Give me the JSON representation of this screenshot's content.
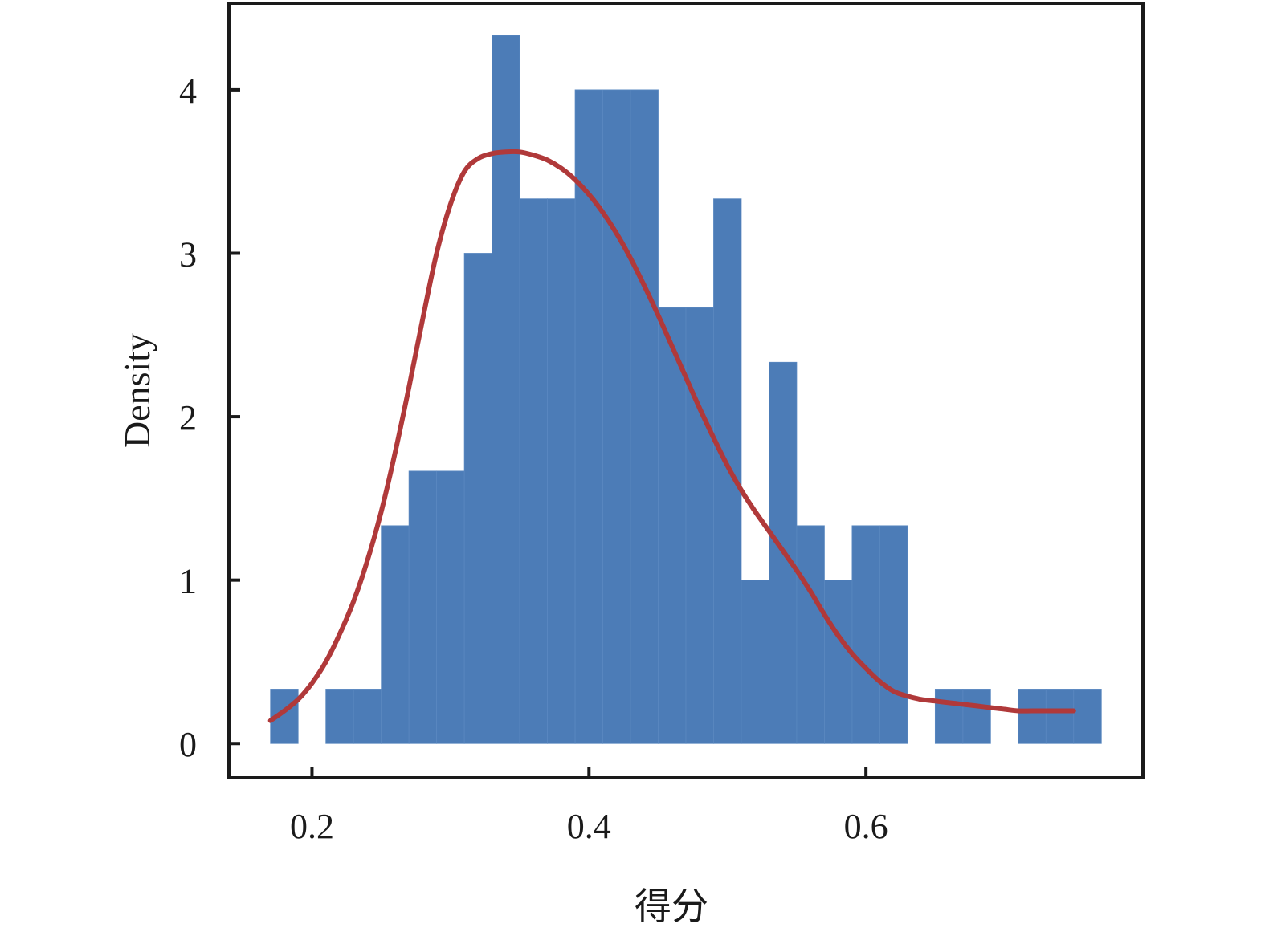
{
  "chart_data": {
    "type": "bar",
    "title": "",
    "xlabel": "得分",
    "ylabel": "Density",
    "xlim": [
      0.14,
      0.8
    ],
    "ylim": [
      -0.21,
      4.53
    ],
    "x_ticks": [
      {
        "value": 0.2,
        "label": "0.2"
      },
      {
        "value": 0.4,
        "label": "0.4"
      },
      {
        "value": 0.6,
        "label": "0.6"
      }
    ],
    "y_ticks": [
      {
        "value": 0,
        "label": "0"
      },
      {
        "value": 1,
        "label": "1"
      },
      {
        "value": 2,
        "label": "2"
      },
      {
        "value": 3,
        "label": "3"
      },
      {
        "value": 4,
        "label": "4"
      }
    ],
    "grid": false,
    "histogram": {
      "bin_start": 0.17,
      "bin_width": 0.02,
      "color": "#4c7cb7",
      "densities": [
        0.333,
        0,
        0.333,
        0.333,
        1.333,
        1.667,
        1.667,
        3.0,
        4.333,
        3.333,
        3.333,
        4.0,
        4.0,
        4.0,
        2.667,
        2.667,
        3.333,
        1.0,
        2.333,
        1.333,
        1.0,
        1.333,
        1.333,
        0,
        0.333,
        0.333,
        0,
        0.333,
        0.333,
        0.333
      ]
    },
    "kde": {
      "color": "#b0393a",
      "x": [
        0.17,
        0.18,
        0.19,
        0.2,
        0.21,
        0.22,
        0.23,
        0.24,
        0.25,
        0.26,
        0.27,
        0.28,
        0.29,
        0.3,
        0.31,
        0.32,
        0.33,
        0.34,
        0.35,
        0.36,
        0.37,
        0.38,
        0.39,
        0.4,
        0.41,
        0.42,
        0.43,
        0.44,
        0.45,
        0.46,
        0.47,
        0.48,
        0.49,
        0.5,
        0.51,
        0.52,
        0.53,
        0.54,
        0.55,
        0.56,
        0.57,
        0.58,
        0.59,
        0.6,
        0.61,
        0.62,
        0.63,
        0.64,
        0.65,
        0.66,
        0.67,
        0.68,
        0.69,
        0.7,
        0.71,
        0.72,
        0.73,
        0.74,
        0.75
      ],
      "y": [
        0.14,
        0.2,
        0.27,
        0.37,
        0.5,
        0.67,
        0.87,
        1.12,
        1.42,
        1.78,
        2.18,
        2.6,
        3.0,
        3.3,
        3.5,
        3.58,
        3.61,
        3.62,
        3.62,
        3.6,
        3.57,
        3.52,
        3.45,
        3.36,
        3.25,
        3.12,
        2.97,
        2.8,
        2.62,
        2.43,
        2.24,
        2.05,
        1.87,
        1.7,
        1.55,
        1.42,
        1.3,
        1.18,
        1.06,
        0.93,
        0.79,
        0.66,
        0.55,
        0.46,
        0.38,
        0.32,
        0.29,
        0.27,
        0.26,
        0.25,
        0.24,
        0.23,
        0.22,
        0.21,
        0.2,
        0.2,
        0.2,
        0.2,
        0.2
      ]
    }
  }
}
